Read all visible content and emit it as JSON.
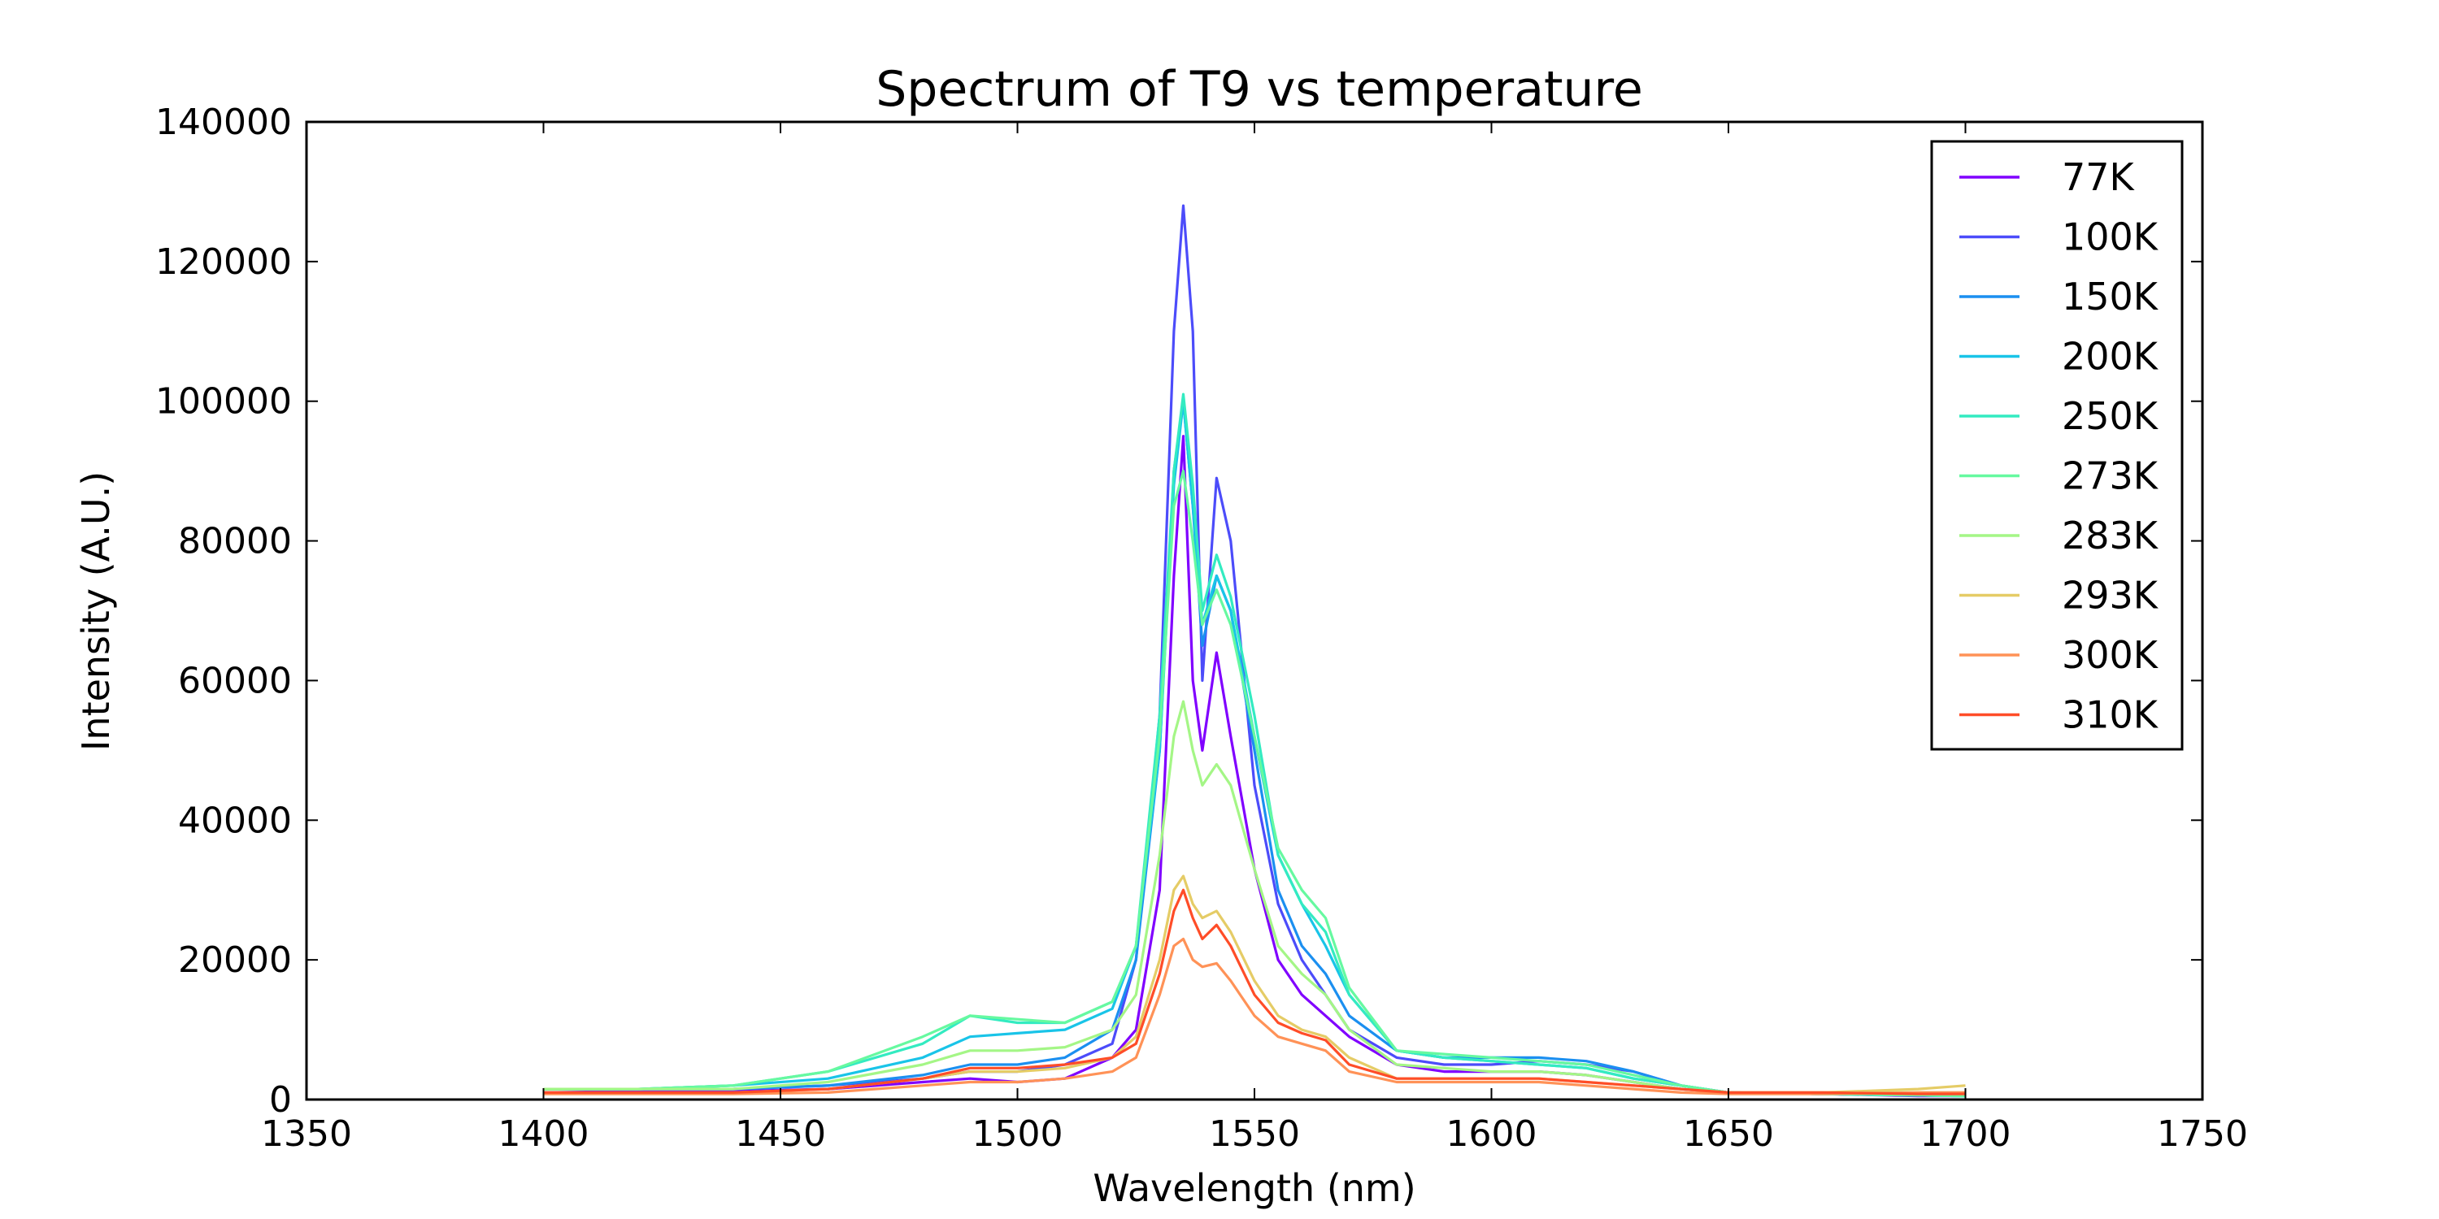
{
  "chart_data": {
    "type": "line",
    "title": "Spectrum of T9 vs temperature",
    "xlabel": "Wavelength (nm)",
    "ylabel": "Intensity (A.U.)",
    "xlim": [
      1350,
      1750
    ],
    "ylim": [
      0,
      140000
    ],
    "xticks": [
      "1350",
      "1400",
      "1450",
      "1500",
      "1550",
      "1600",
      "1650",
      "1700",
      "1750"
    ],
    "yticks": [
      "0",
      "20000",
      "40000",
      "60000",
      "80000",
      "100000",
      "120000",
      "140000"
    ],
    "grid": false,
    "legend_position": "top-right",
    "x": [
      1400,
      1420,
      1440,
      1460,
      1480,
      1490,
      1500,
      1510,
      1520,
      1525,
      1530,
      1533,
      1535,
      1537,
      1539,
      1542,
      1545,
      1550,
      1555,
      1560,
      1565,
      1570,
      1580,
      1590,
      1600,
      1610,
      1620,
      1630,
      1640,
      1650,
      1670,
      1690,
      1700
    ],
    "series": [
      {
        "name": "77K",
        "color": "#8000ff",
        "values": [
          1000,
          1200,
          1200,
          1500,
          2500,
          3000,
          2500,
          3000,
          6000,
          10000,
          30000,
          75000,
          95000,
          60000,
          50000,
          64000,
          52000,
          33000,
          20000,
          15000,
          12000,
          9000,
          5000,
          4000,
          4000,
          4000,
          3500,
          2500,
          1500,
          1000,
          800,
          500,
          500
        ]
      },
      {
        "name": "100K",
        "color": "#4c4cfa",
        "values": [
          1500,
          1500,
          1500,
          2000,
          3000,
          4000,
          4000,
          5000,
          8000,
          20000,
          55000,
          110000,
          128000,
          110000,
          60000,
          89000,
          80000,
          45000,
          28000,
          20000,
          15000,
          10000,
          6000,
          5000,
          5000,
          5500,
          5000,
          4000,
          2000,
          1000,
          800,
          600,
          500
        ]
      },
      {
        "name": "150K",
        "color": "#1b8ff0",
        "values": [
          1500,
          1500,
          1500,
          2000,
          3500,
          5000,
          5000,
          6000,
          10000,
          20000,
          50000,
          90000,
          100000,
          85000,
          65000,
          75000,
          70000,
          50000,
          30000,
          22000,
          18000,
          12000,
          7000,
          6000,
          6000,
          6000,
          5500,
          4000,
          2000,
          1000,
          800,
          600,
          500
        ]
      },
      {
        "name": "200K",
        "color": "#19c4e8",
        "values": [
          1500,
          1500,
          2000,
          3000,
          6000,
          9000,
          9500,
          10000,
          13000,
          22000,
          50000,
          88000,
          100000,
          85000,
          68000,
          75000,
          70000,
          52000,
          35000,
          28000,
          22000,
          15000,
          7000,
          6000,
          5500,
          5000,
          4500,
          3000,
          2000,
          1000,
          800,
          600,
          500
        ]
      },
      {
        "name": "250K",
        "color": "#33ebc1",
        "values": [
          1500,
          1500,
          2000,
          4000,
          8000,
          12000,
          11000,
          11000,
          14000,
          22000,
          55000,
          90000,
          101000,
          88000,
          70000,
          78000,
          72000,
          55000,
          35000,
          28000,
          24000,
          15000,
          7000,
          6000,
          5500,
          5000,
          4500,
          3000,
          2000,
          1000,
          800,
          600,
          500
        ]
      },
      {
        "name": "273K",
        "color": "#66f9a0",
        "values": [
          1500,
          1500,
          2000,
          4000,
          9000,
          12000,
          11500,
          11000,
          14000,
          22000,
          52000,
          85000,
          90000,
          80000,
          68000,
          73000,
          68000,
          52000,
          36000,
          30000,
          26000,
          16000,
          7000,
          6500,
          6000,
          5500,
          5000,
          3500,
          2000,
          1000,
          800,
          600,
          500
        ]
      },
      {
        "name": "283K",
        "color": "#a4f686",
        "values": [
          1500,
          1500,
          1500,
          2500,
          5000,
          7000,
          7000,
          7500,
          10000,
          15000,
          35000,
          52000,
          57000,
          50000,
          45000,
          48000,
          45000,
          33000,
          22000,
          18000,
          15000,
          10000,
          5000,
          4500,
          4000,
          4000,
          3500,
          2500,
          1500,
          1000,
          1000,
          1000,
          1000
        ]
      },
      {
        "name": "293K",
        "color": "#e5cc66",
        "values": [
          1000,
          1000,
          1000,
          1500,
          3000,
          4000,
          4000,
          4500,
          6000,
          9000,
          20000,
          30000,
          32000,
          28000,
          26000,
          27000,
          24000,
          17000,
          12000,
          10000,
          9000,
          6000,
          3000,
          3000,
          3000,
          3000,
          2500,
          2000,
          1500,
          1000,
          1000,
          1500,
          2000
        ]
      },
      {
        "name": "300K",
        "color": "#ff9257",
        "values": [
          800,
          800,
          800,
          1000,
          2000,
          2500,
          2500,
          3000,
          4000,
          6000,
          15000,
          22000,
          23000,
          20000,
          19000,
          19500,
          17000,
          12000,
          9000,
          8000,
          7000,
          4000,
          2500,
          2500,
          2500,
          2500,
          2000,
          1500,
          1000,
          800,
          800,
          1000,
          1000
        ]
      },
      {
        "name": "310K",
        "color": "#ff4d28",
        "values": [
          1000,
          1000,
          1000,
          1500,
          3000,
          4500,
          4500,
          5000,
          6000,
          8000,
          18000,
          27000,
          30000,
          26000,
          23000,
          25000,
          22000,
          15000,
          11000,
          9500,
          8500,
          5000,
          3000,
          3000,
          3000,
          3000,
          2500,
          2000,
          1500,
          1000,
          1000,
          800,
          800
        ]
      }
    ]
  }
}
